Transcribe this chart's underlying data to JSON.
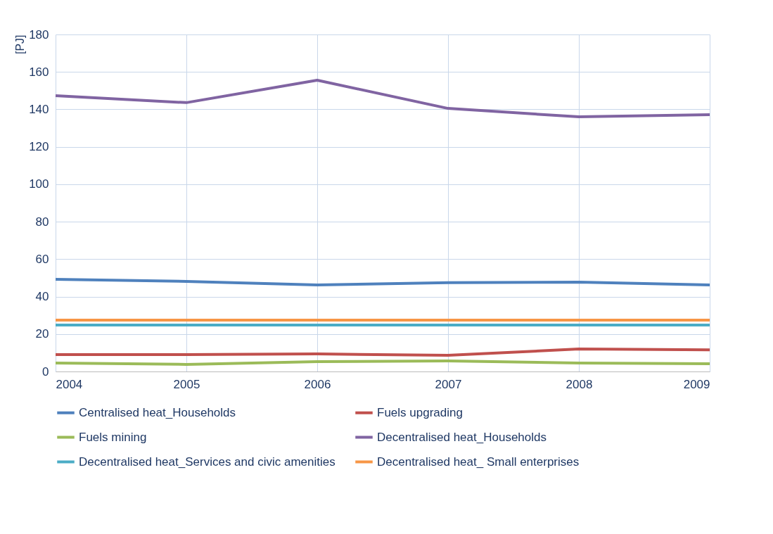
{
  "chart_data": {
    "type": "line",
    "ylabel": "[PJ]",
    "categories": [
      "2004",
      "2005",
      "2006",
      "2007",
      "2008",
      "2009"
    ],
    "ylim": [
      0,
      180
    ],
    "yticks": [
      0,
      20,
      40,
      60,
      80,
      100,
      120,
      140,
      160,
      180
    ],
    "grid": true,
    "legend": "bottom",
    "line_style": "solid",
    "series": [
      {
        "name": "Centralised heat_Households",
        "color": "#4f81bd",
        "values": [
          49.2,
          48.1,
          46.2,
          47.4,
          47.7,
          46.2
        ]
      },
      {
        "name": "Fuels upgrading",
        "color": "#c0504d",
        "values": [
          9,
          9,
          9.4,
          8.6,
          12,
          11.6
        ]
      },
      {
        "name": "Fuels mining",
        "color": "#9bbb59",
        "values": [
          4.5,
          3.8,
          5.3,
          5.6,
          4.5,
          4.1
        ]
      },
      {
        "name": "Decentralised heat_Households",
        "color": "#8064a2",
        "values": [
          147.3,
          143.6,
          155.6,
          140.5,
          136,
          137.2
        ]
      },
      {
        "name": "Decentralised heat_Services and civic amenities",
        "color": "#4bacc6",
        "values": [
          24.8,
          24.8,
          24.8,
          24.8,
          24.8,
          24.8
        ]
      },
      {
        "name": "Decentralised heat_ Small enterprises",
        "color": "#f79646",
        "values": [
          27.4,
          27.4,
          27.4,
          27.4,
          27.4,
          27.4
        ]
      }
    ]
  }
}
